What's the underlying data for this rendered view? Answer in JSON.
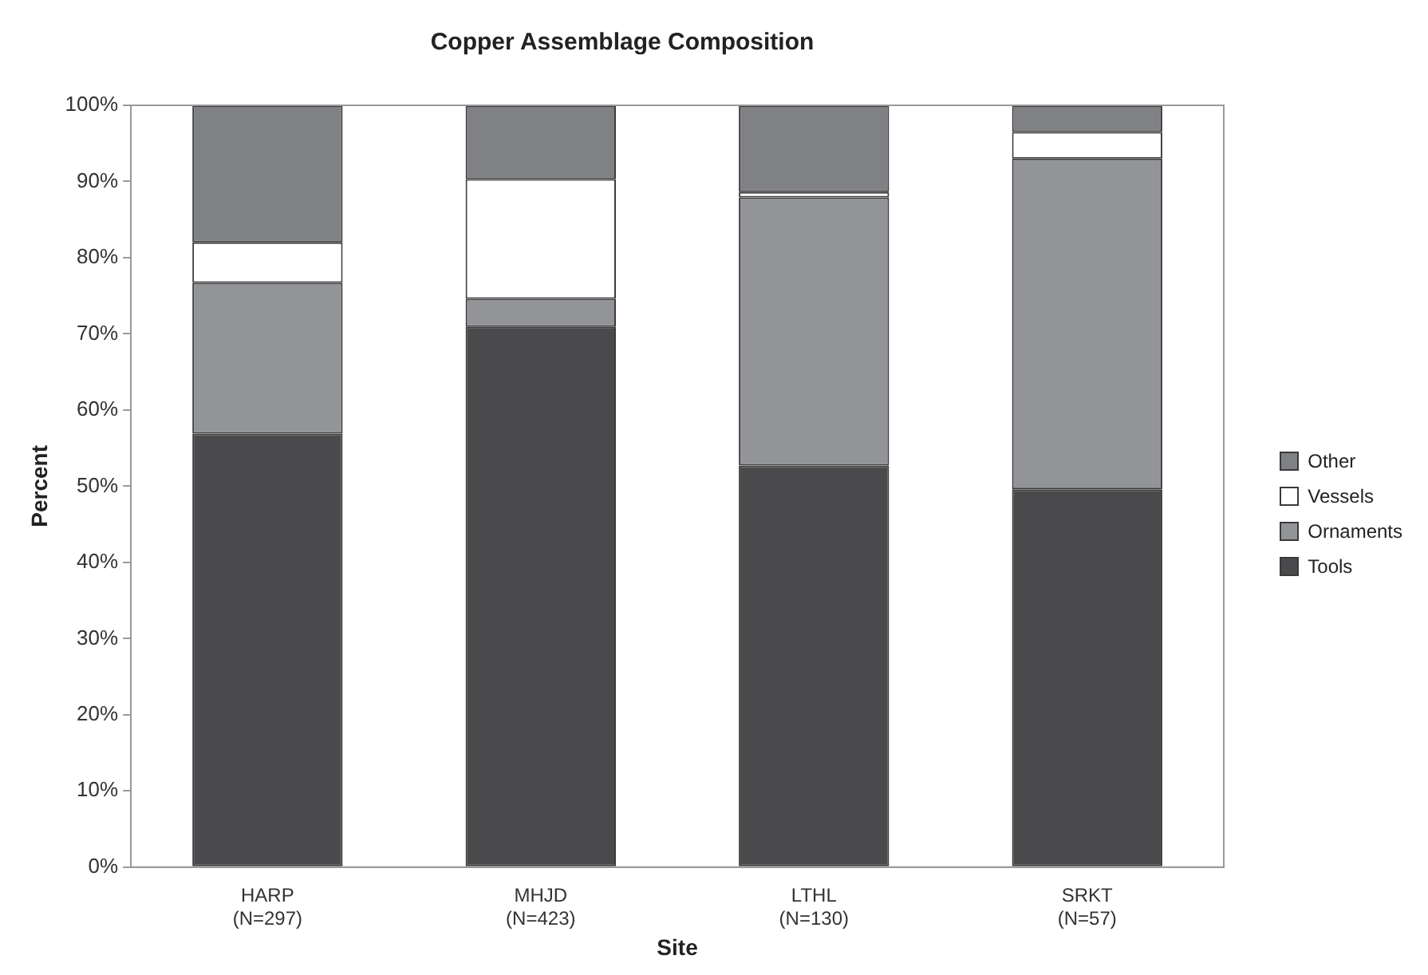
{
  "chart_data": {
    "type": "bar",
    "title": "Copper Assemblage Composition",
    "xlabel": "Site",
    "ylabel": "Percent",
    "categories": [
      "HARP\n(N=297)",
      "MHJD\n(N=423)",
      "LTHL\n(N=130)",
      "SRKT\n(N=57)"
    ],
    "stacked": true,
    "series": [
      {
        "name": "Tools",
        "color": "#4a4a4c",
        "values": [
          56.9,
          70.9,
          52.7,
          49.6
        ]
      },
      {
        "name": "Ornaments",
        "color": "#939497",
        "values": [
          19.8,
          3.7,
          35.2,
          43.4
        ]
      },
      {
        "name": "Vessels",
        "color": "#ffffff",
        "values": [
          5.3,
          15.7,
          0.7,
          3.5
        ]
      },
      {
        "name": "Other",
        "color": "#808184",
        "values": [
          18.0,
          9.7,
          11.4,
          3.5
        ]
      }
    ],
    "ylim": [
      0,
      100
    ],
    "yticks": [
      {
        "value": 0,
        "label": "0%"
      },
      {
        "value": 10,
        "label": "10%"
      },
      {
        "value": 20,
        "label": "20%"
      },
      {
        "value": 30,
        "label": "30%"
      },
      {
        "value": 40,
        "label": "40%"
      },
      {
        "value": 50,
        "label": "50%"
      },
      {
        "value": 60,
        "label": "60%"
      },
      {
        "value": 70,
        "label": "70%"
      },
      {
        "value": 80,
        "label": "80%"
      },
      {
        "value": 90,
        "label": "90%"
      },
      {
        "value": 100,
        "label": "100%"
      }
    ],
    "grid": false,
    "legend": "right"
  }
}
